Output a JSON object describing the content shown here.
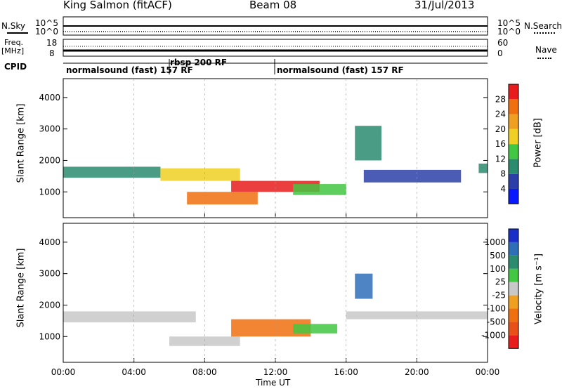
{
  "header": {
    "site": "King Salmon (fitACF)",
    "beam": "Beam 08",
    "date": "31/Jul/2013"
  },
  "summary": {
    "nsky_label": "N.Sky",
    "nsearch_label": "N.Search",
    "freq_label_1": "Freq.",
    "freq_label_2": "[MHz]",
    "nave_label": "Nave",
    "cpid_label": "CPID",
    "noise_ticks": [
      "10^5",
      "10^0"
    ],
    "noise_right_ticks": [
      "10^5",
      "10^0"
    ],
    "freq_ticks": [
      "18",
      "8"
    ],
    "nave_ticks": [
      "60",
      "0"
    ],
    "cpid_segments": [
      {
        "label": "normalsound (fast) 157 RF"
      },
      {
        "label": "rbsp 200 RF"
      },
      {
        "label": "normalsound (fast) 157 RF"
      }
    ]
  },
  "chart_data": [
    {
      "type": "heatmap",
      "panel": "power",
      "xlabel": "",
      "ylabel": "Slant Range [km]",
      "yticks": [
        "1000",
        "2000",
        "3000",
        "4000"
      ],
      "ylim": [
        180,
        4600
      ],
      "xlim_hours": [
        0,
        24
      ],
      "colorbar": {
        "label": "Power [dB]",
        "ticks": [
          "4",
          "8",
          "12",
          "16",
          "20",
          "24",
          "28"
        ],
        "colors": [
          "#0a1aff",
          "#2c3fa8",
          "#2a8b6e",
          "#42c742",
          "#f0d024",
          "#f0a020",
          "#f07010",
          "#e81c1c"
        ]
      },
      "bands": [
        {
          "t0": 0.0,
          "t1": 5.5,
          "r0": 1450,
          "r1": 1800,
          "level": 2
        },
        {
          "t0": 5.5,
          "t1": 10.0,
          "r0": 1350,
          "r1": 1750,
          "level": 4
        },
        {
          "t0": 7.0,
          "t1": 11.0,
          "r0": 600,
          "r1": 1000,
          "level": 6
        },
        {
          "t0": 9.5,
          "t1": 14.5,
          "r0": 1000,
          "r1": 1350,
          "level": 7
        },
        {
          "t0": 13.0,
          "t1": 16.0,
          "r0": 900,
          "r1": 1250,
          "level": 3
        },
        {
          "t0": 16.5,
          "t1": 18.0,
          "r0": 2000,
          "r1": 3100,
          "level": 2
        },
        {
          "t0": 17.0,
          "t1": 22.5,
          "r0": 1300,
          "r1": 1700,
          "level": 1
        },
        {
          "t0": 23.5,
          "t1": 24.0,
          "r0": 1600,
          "r1": 1900,
          "level": 2
        }
      ]
    },
    {
      "type": "heatmap",
      "panel": "velocity",
      "xlabel": "Time UT",
      "ylabel": "Slant Range [km]",
      "yticks": [
        "1000",
        "2000",
        "3000",
        "4000"
      ],
      "xticks": [
        "00:00",
        "04:00",
        "08:00",
        "12:00",
        "16:00",
        "20:00",
        "00:00"
      ],
      "ylim": [
        180,
        4600
      ],
      "xlim_hours": [
        0,
        24
      ],
      "colorbar": {
        "label": "Velocity [m s⁻¹]",
        "ticks": [
          "1000",
          "500",
          "100",
          "25",
          "-25",
          "-100",
          "-500",
          "-1000"
        ],
        "colors": [
          "#1a2fc8",
          "#2f6fb8",
          "#2a8b6e",
          "#42c742",
          "#c8c8c8",
          "#f0a020",
          "#f07010",
          "#e85018",
          "#e81c1c"
        ]
      },
      "bands": [
        {
          "t0": 0.0,
          "t1": 7.5,
          "r0": 1450,
          "r1": 1800,
          "level": 4
        },
        {
          "t0": 6.0,
          "t1": 10.0,
          "r0": 700,
          "r1": 1000,
          "level": 4
        },
        {
          "t0": 9.5,
          "t1": 14.0,
          "r0": 1000,
          "r1": 1550,
          "level": 6
        },
        {
          "t0": 13.0,
          "t1": 15.5,
          "r0": 1100,
          "r1": 1400,
          "level": 3
        },
        {
          "t0": 16.5,
          "t1": 17.5,
          "r0": 2200,
          "r1": 3000,
          "level": 1
        },
        {
          "t0": 16.0,
          "t1": 24.0,
          "r0": 1550,
          "r1": 1800,
          "level": 4
        }
      ]
    }
  ]
}
